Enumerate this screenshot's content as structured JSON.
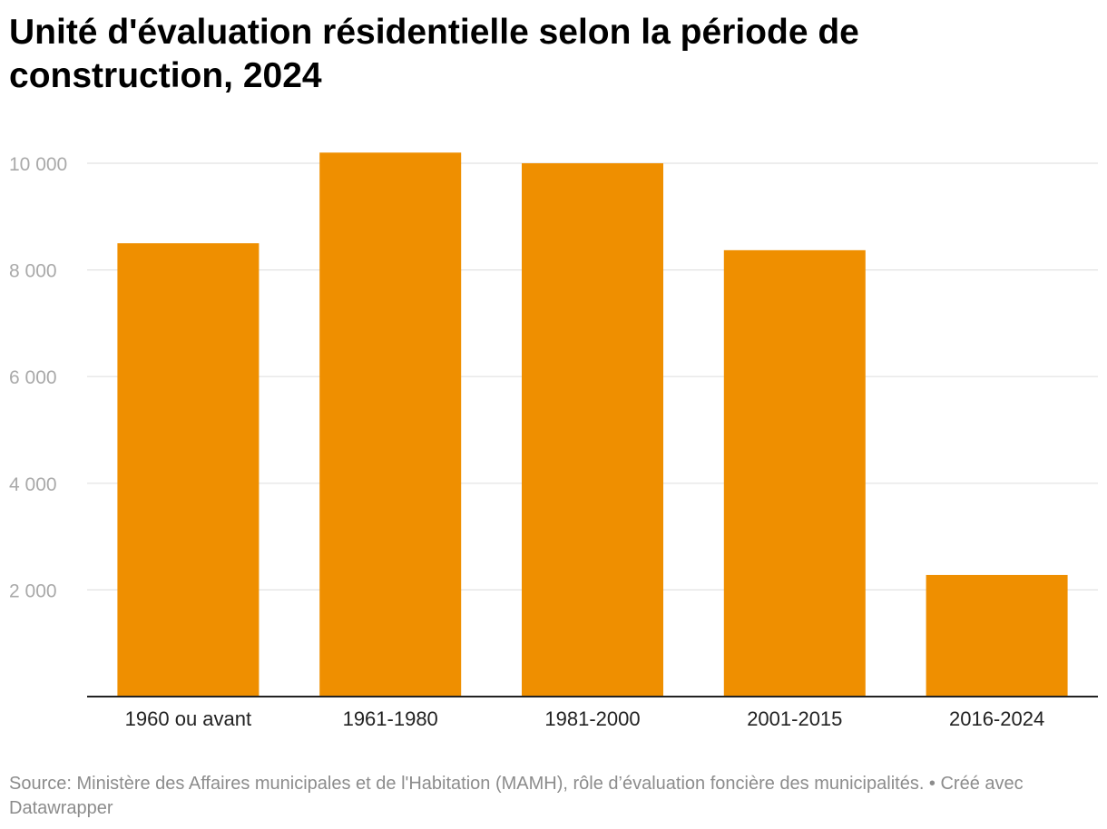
{
  "title": "Unité d'évaluation résidentielle selon la période de construction, 2024",
  "footer": "Source: Ministère des Affaires municipales et de l'Habitation (MAMH), rôle d’évaluation foncière des municipalités. • Créé avec Datawrapper",
  "colors": {
    "bar": "#ef8f00",
    "grid": "#e2e2e2",
    "axis": "#222222"
  },
  "chart_data": {
    "type": "bar",
    "title": "Unité d'évaluation résidentielle selon la période de construction, 2024",
    "xlabel": "",
    "ylabel": "",
    "categories": [
      "1960 ou avant",
      "1961-1980",
      "1981-2000",
      "2001-2015",
      "2016-2024"
    ],
    "values": [
      8500,
      10200,
      10000,
      8370,
      2280
    ],
    "ylim": [
      0,
      10400
    ],
    "yticks": [
      2000,
      4000,
      6000,
      8000,
      10000
    ],
    "ytick_labels": [
      "2 000",
      "4 000",
      "6 000",
      "8 000",
      "10 000"
    ],
    "grid": true,
    "legend": "none"
  }
}
